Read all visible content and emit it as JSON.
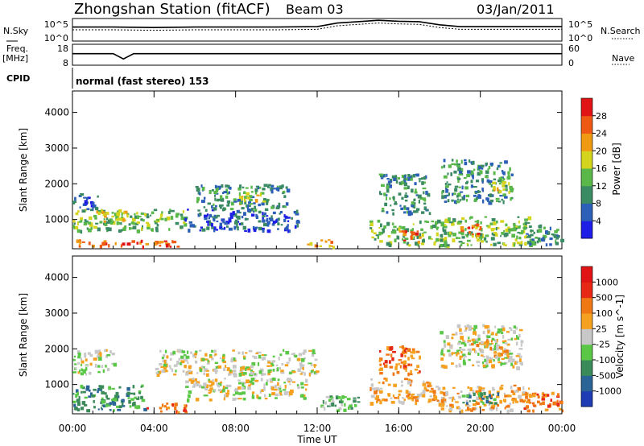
{
  "header": {
    "title": "Zhongshan Station (fitACF)",
    "beam": "Beam 03",
    "date": "03/Jan/2011"
  },
  "chart_data": [
    {
      "type": "line",
      "name": "noise-panel",
      "left_label": "N.Sky",
      "right_label": "N.Search",
      "left_ticks": [
        "10^5",
        "10^0"
      ],
      "right_ticks": [
        "10^5",
        "10^0"
      ],
      "x": [
        0,
        2,
        4,
        6,
        8,
        10,
        12,
        13,
        14,
        15,
        16,
        17,
        18,
        19,
        20,
        22,
        24
      ],
      "series": [
        {
          "values": [
            0.62,
            0.62,
            0.6,
            0.62,
            0.62,
            0.62,
            0.64,
            0.8,
            0.86,
            0.92,
            0.88,
            0.86,
            0.72,
            0.64,
            0.64,
            0.64,
            0.64
          ],
          "color": "#000000"
        },
        {
          "values": [
            0.5,
            0.5,
            0.48,
            0.5,
            0.5,
            0.5,
            0.52,
            0.68,
            0.74,
            0.8,
            0.76,
            0.74,
            0.6,
            0.52,
            0.52,
            0.52,
            0.52
          ],
          "color": "#000000"
        }
      ]
    },
    {
      "type": "line",
      "name": "frequency-panel",
      "left_label": "Freq.",
      "left_unit": "[MHz]",
      "right_label": "Nave",
      "left_ticks": [
        "18",
        "8"
      ],
      "right_ticks": [
        "60",
        "0"
      ],
      "x": [
        0,
        2,
        2.5,
        3,
        4,
        8,
        12,
        16,
        20,
        24
      ],
      "series": [
        {
          "values": [
            0.55,
            0.55,
            0.3,
            0.55,
            0.55,
            0.55,
            0.55,
            0.55,
            0.55,
            0.55
          ],
          "color": "#000000"
        }
      ]
    },
    {
      "type": "text",
      "name": "cpid-panel",
      "label": "CPID",
      "value": "normal (fast stereo) 153"
    },
    {
      "type": "heatmap",
      "name": "power-panel",
      "ylabel": "Slant Range [km]",
      "ylim": [
        180,
        4600
      ],
      "y_ticks": [
        1000,
        2000,
        3000,
        4000
      ],
      "xlim": [
        0,
        24
      ],
      "colorbar": {
        "label": "Power [dB]",
        "ticks": [
          "4",
          "8",
          "12",
          "16",
          "20",
          "24",
          "28"
        ],
        "colors": [
          "#1e1ee6",
          "#2b5fb8",
          "#3a8a63",
          "#5ab84a",
          "#d4d41e",
          "#f09a14",
          "#ee5a14",
          "#e01414"
        ]
      },
      "regions": [
        {
          "t0": 0.0,
          "t1": 5.2,
          "r0": 250,
          "r1": 450,
          "level": 6
        },
        {
          "t0": 0.0,
          "t1": 5.5,
          "r0": 700,
          "r1": 1300,
          "level": 3
        },
        {
          "t0": 0.0,
          "t1": 1.2,
          "r0": 1300,
          "r1": 1750,
          "level": 1
        },
        {
          "t0": 1.0,
          "t1": 2.8,
          "r0": 950,
          "r1": 1300,
          "level": 4
        },
        {
          "t0": 5.5,
          "t1": 11.0,
          "r0": 700,
          "r1": 1300,
          "level": 1
        },
        {
          "t0": 6.0,
          "t1": 10.5,
          "r0": 1300,
          "r1": 2000,
          "level": 2
        },
        {
          "t0": 8.0,
          "t1": 9.5,
          "r0": 1500,
          "r1": 1800,
          "level": 4
        },
        {
          "t0": 11.5,
          "t1": 12.8,
          "r0": 250,
          "r1": 450,
          "level": 5
        },
        {
          "t0": 14.5,
          "t1": 18.5,
          "r0": 300,
          "r1": 1000,
          "level": 3
        },
        {
          "t0": 15.0,
          "t1": 17.5,
          "r0": 1200,
          "r1": 2300,
          "level": 2
        },
        {
          "t0": 16.0,
          "t1": 17.0,
          "r0": 400,
          "r1": 700,
          "level": 6
        },
        {
          "t0": 18.0,
          "t1": 22.5,
          "r0": 300,
          "r1": 1100,
          "level": 3
        },
        {
          "t0": 18.0,
          "t1": 21.5,
          "r0": 1500,
          "r1": 2700,
          "level": 2
        },
        {
          "t0": 19.0,
          "t1": 20.0,
          "r0": 600,
          "r1": 900,
          "level": 6
        },
        {
          "t0": 20.5,
          "t1": 21.5,
          "r0": 1800,
          "r1": 2100,
          "level": 4
        },
        {
          "t0": 22.0,
          "t1": 24.0,
          "r0": 300,
          "r1": 900,
          "level": 2
        }
      ]
    },
    {
      "type": "heatmap",
      "name": "velocity-panel",
      "ylabel": "Slant Range [km]",
      "ylim": [
        180,
        4600
      ],
      "y_ticks": [
        1000,
        2000,
        3000,
        4000
      ],
      "xlim": [
        0,
        24
      ],
      "x_ticks": [
        "00:00",
        "04:00",
        "08:00",
        "12:00",
        "16:00",
        "20:00",
        "00:00"
      ],
      "xlabel": "Time UT",
      "colorbar": {
        "label": "Velocity [m s^-1]",
        "ticks": [
          "1000",
          "500",
          "100",
          "25",
          "-25",
          "-100",
          "-500",
          "-1000"
        ],
        "colors": [
          "#1e3cb4",
          "#2a6496",
          "#3a8a5a",
          "#5ac846",
          "#c8c8c8",
          "#f5a01e",
          "#f07814",
          "#e62814",
          "#e01414"
        ]
      },
      "regions": [
        {
          "t0": 0.0,
          "t1": 3.5,
          "r0": 300,
          "r1": 1000,
          "level": 2
        },
        {
          "t0": 0.0,
          "t1": 2.0,
          "r0": 1300,
          "r1": 2000,
          "level": 4
        },
        {
          "t0": 3.5,
          "t1": 5.5,
          "r0": 250,
          "r1": 500,
          "level": 6
        },
        {
          "t0": 4.0,
          "t1": 12.0,
          "r0": 1300,
          "r1": 2000,
          "level": 4
        },
        {
          "t0": 5.5,
          "t1": 11.5,
          "r0": 600,
          "r1": 1200,
          "level": 4
        },
        {
          "t0": 12.0,
          "t1": 14.0,
          "r0": 300,
          "r1": 700,
          "level": 3
        },
        {
          "t0": 14.5,
          "t1": 17.5,
          "r0": 500,
          "r1": 1200,
          "level": 5
        },
        {
          "t0": 15.0,
          "t1": 17.0,
          "r0": 1300,
          "r1": 2100,
          "level": 6
        },
        {
          "t0": 17.5,
          "t1": 22.5,
          "r0": 300,
          "r1": 1000,
          "level": 5
        },
        {
          "t0": 18.0,
          "t1": 22.0,
          "r0": 1500,
          "r1": 2700,
          "level": 4
        },
        {
          "t0": 19.5,
          "t1": 21.5,
          "r0": 1800,
          "r1": 2300,
          "level": 5
        },
        {
          "t0": 19.0,
          "t1": 21.0,
          "r0": 500,
          "r1": 800,
          "level": 2
        },
        {
          "t0": 22.0,
          "t1": 24.0,
          "r0": 300,
          "r1": 800,
          "level": 6
        }
      ]
    }
  ]
}
